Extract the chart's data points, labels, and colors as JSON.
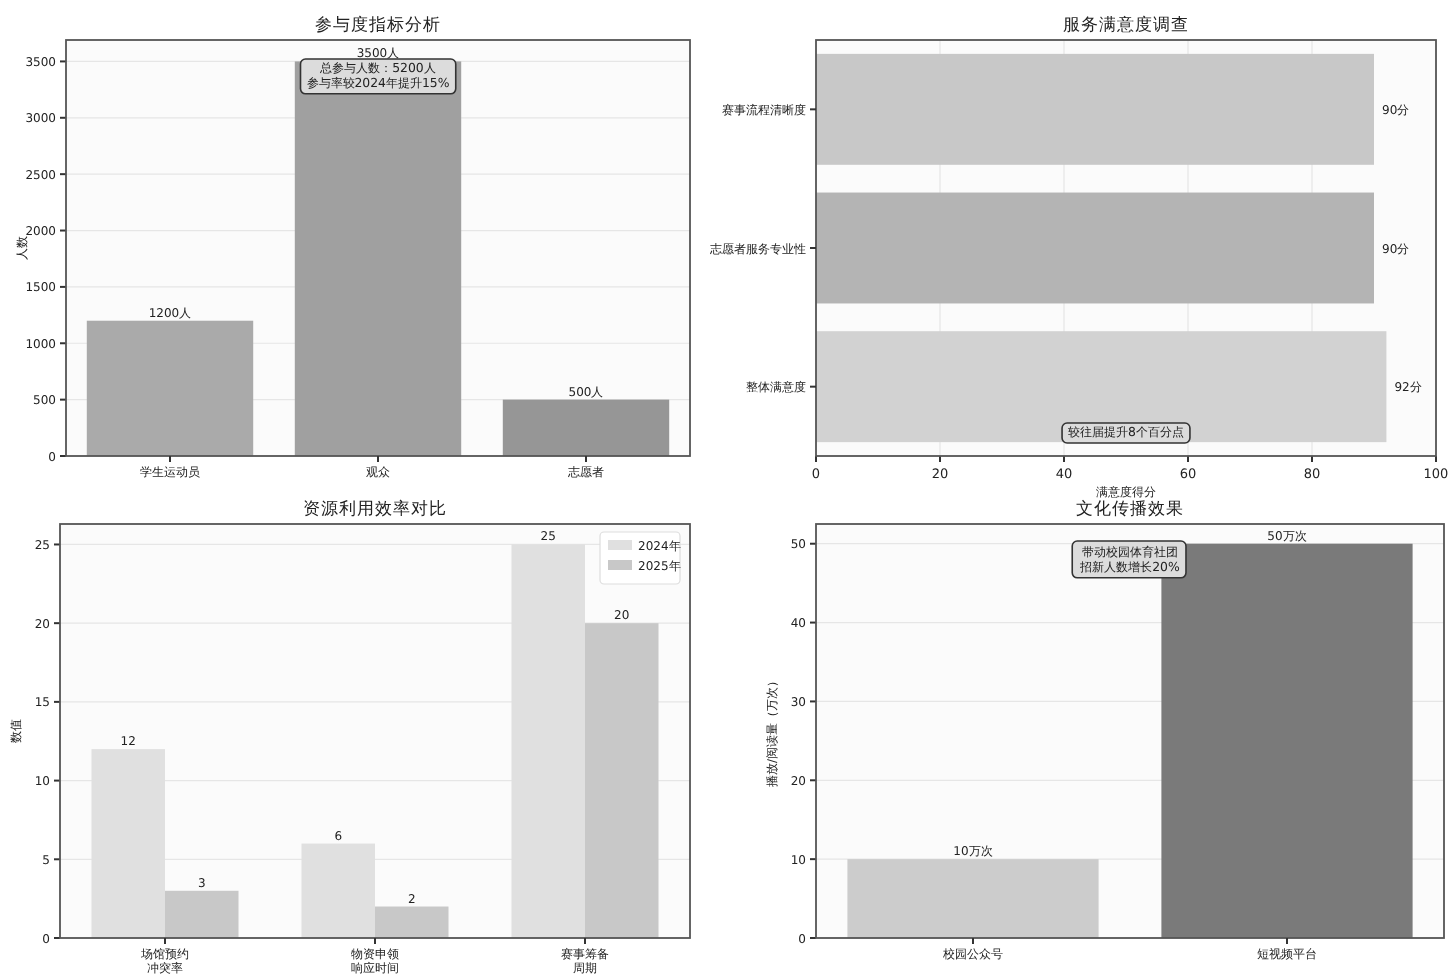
{
  "chart_data": [
    {
      "type": "bar",
      "title": "参与度指标分析",
      "ylabel": "人数",
      "categories": [
        "学生运动员",
        "观众",
        "志愿者"
      ],
      "values": [
        1200,
        3500,
        500
      ],
      "colors": [
        "#aaaaaa",
        "#a0a0a0",
        "#969696"
      ],
      "value_labels": [
        "1200人",
        "3500人",
        "500人"
      ],
      "ylim": [
        0,
        3690
      ],
      "yticks": [
        0,
        500,
        1000,
        1500,
        2000,
        2500,
        3000,
        3500
      ],
      "grid": "y",
      "annotations": [
        "总参与人数：5200人",
        "参与率较2024年提升15%"
      ]
    },
    {
      "type": "bar",
      "orientation": "horizontal",
      "title": "服务满意度调查",
      "xlabel": "满意度得分",
      "categories": [
        "赛事流程清晰度",
        "志愿者服务专业性",
        "整体满意度"
      ],
      "values": [
        90,
        90,
        92
      ],
      "colors": [
        "#c8c8c8",
        "#b4b4b4",
        "#d2d2d2"
      ],
      "value_labels": [
        "90分",
        "90分",
        "92分"
      ],
      "xlim": [
        0,
        100
      ],
      "xticks": [
        0,
        20,
        40,
        60,
        80,
        100
      ],
      "grid": "x",
      "annotations": [
        "较往届提升8个百分点"
      ]
    },
    {
      "type": "bar",
      "title": "资源利用效率对比",
      "ylabel": "数值",
      "categories": [
        "场馆预约冲突率",
        "物资申领响应时间",
        "赛事筹备周期"
      ],
      "series": [
        {
          "name": "2024年",
          "color": "#e0e0e0",
          "values": [
            12,
            6,
            25
          ]
        },
        {
          "name": "2025年",
          "color": "#c8c8c8",
          "values": [
            3,
            2,
            20
          ]
        }
      ],
      "data_labels": true,
      "ylim": [
        0,
        26.3
      ],
      "yticks": [
        0,
        5,
        10,
        15,
        20,
        25
      ],
      "grid": "y",
      "legend": "top right"
    },
    {
      "type": "bar",
      "title": "文化传播效果",
      "ylabel": "播放/阅读量（万次）",
      "categories": [
        "校园公众号",
        "短视频平台"
      ],
      "values": [
        10,
        50
      ],
      "colors": [
        "#cccccc",
        "#7a7a7a"
      ],
      "value_labels": [
        "10万次",
        "50万次"
      ],
      "ylim": [
        0,
        52.5
      ],
      "yticks": [
        0,
        10,
        20,
        30,
        40,
        50
      ],
      "grid": "y",
      "annotations": [
        "带动校园体育社团",
        "招新人数增长20%"
      ]
    }
  ]
}
